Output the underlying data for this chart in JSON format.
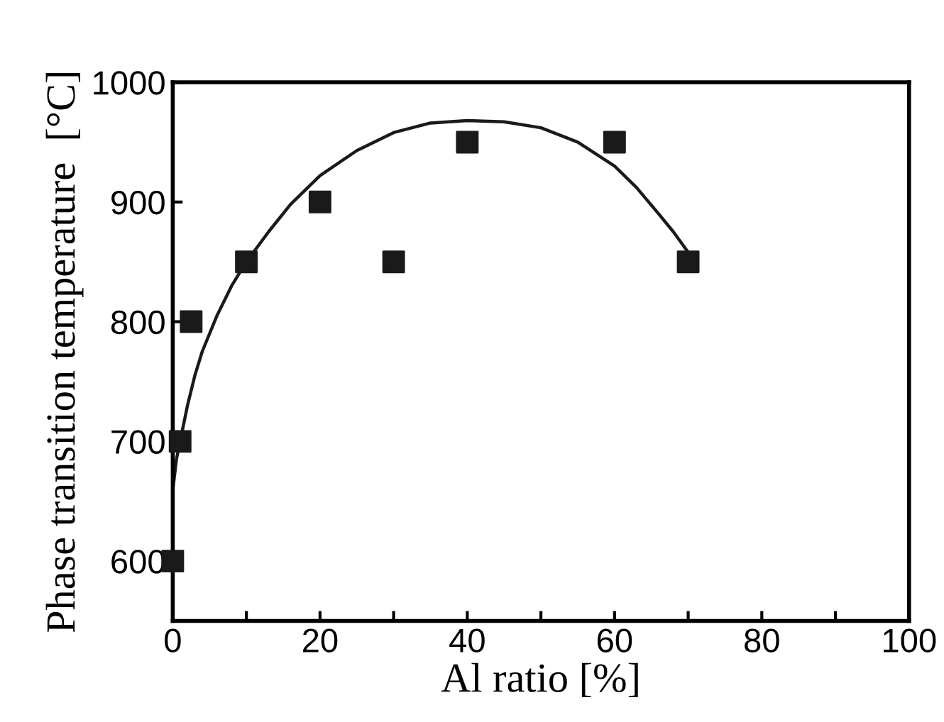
{
  "chart_data": {
    "type": "scatter",
    "xlabel": "Al ratio [%]",
    "ylabel": "Phase transition temperature  [°C]",
    "xlim": [
      0,
      100
    ],
    "ylim": [
      550,
      1000
    ],
    "xticks": [
      0,
      {
        "value": 10,
        "label": null
      },
      20,
      {
        "value": 30,
        "label": null
      },
      40,
      {
        "value": 50,
        "label": null
      },
      60,
      {
        "value": 70,
        "label": null
      },
      80,
      {
        "value": 90,
        "label": null
      },
      100
    ],
    "yticks": [
      600,
      700,
      800,
      900,
      1000
    ],
    "grid": false,
    "legend": false,
    "series": [
      {
        "color": "#1a1a1a",
        "marker": "square",
        "x": [
          0,
          1,
          2.5,
          10,
          20,
          30,
          40,
          60,
          70
        ],
        "values": [
          600,
          700,
          800,
          850,
          900,
          850,
          950,
          950,
          850
        ]
      },
      {
        "type": "line",
        "color": "#1a1a1a",
        "marker": "none",
        "line_style": "solid",
        "x": [
          0,
          0.5,
          1,
          2,
          3,
          4,
          6,
          8,
          10,
          13,
          16,
          20,
          25,
          30,
          35,
          40,
          45,
          50,
          55,
          60,
          63,
          66,
          68,
          70
        ],
        "values": [
          659,
          685,
          700,
          730,
          755,
          775,
          805,
          830,
          850,
          875,
          898,
          922,
          943,
          958,
          966,
          968,
          967,
          962,
          950,
          930,
          912,
          890,
          875,
          858
        ]
      }
    ]
  }
}
